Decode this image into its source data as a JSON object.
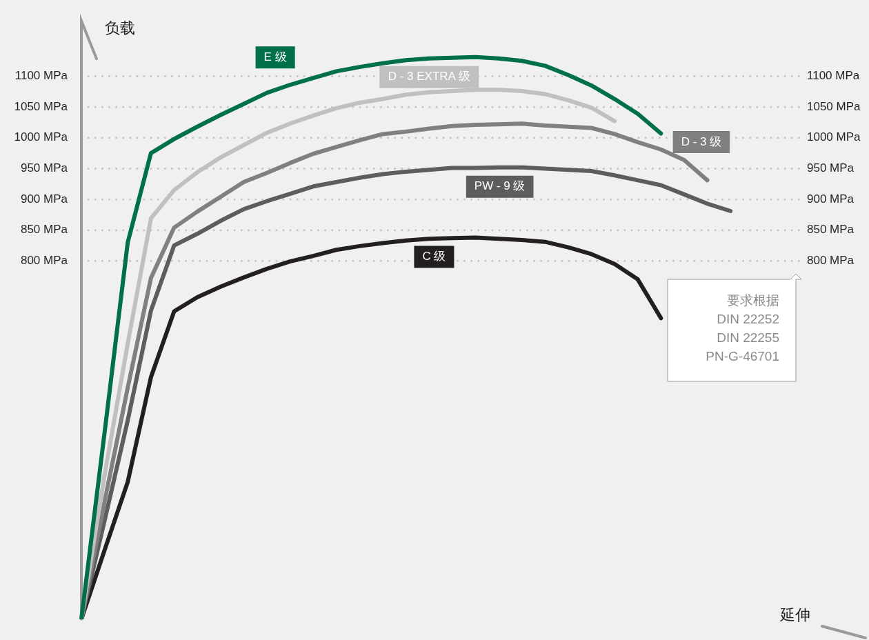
{
  "chart_data": {
    "type": "line",
    "xlabel": "延伸",
    "ylabel": "负载",
    "categories": [
      null,
      null,
      null,
      null,
      null,
      null,
      null,
      null,
      null,
      null,
      null,
      null,
      null,
      null,
      null,
      null,
      null,
      null,
      null,
      null,
      null,
      null,
      null,
      null,
      null,
      null,
      null,
      null,
      null,
      null,
      null,
      null
    ],
    "ylim": [
      218,
      1190
    ],
    "yticks": [
      {
        "value": 800,
        "label": "800 MPa"
      },
      {
        "value": 850,
        "label": "850 MPa"
      },
      {
        "value": 900,
        "label": "900 MPa"
      },
      {
        "value": 950,
        "label": "950 MPa"
      },
      {
        "value": 1000,
        "label": "1000 MPa"
      },
      {
        "value": 1050,
        "label": "1050 MPa"
      },
      {
        "value": 1100,
        "label": "1100 MPa"
      }
    ],
    "y2lim": [
      218,
      1190
    ],
    "y2ticks": [
      {
        "value": 800,
        "label": "800 MPa"
      },
      {
        "value": 850,
        "label": "850 MPa"
      },
      {
        "value": 900,
        "label": "900 MPa"
      },
      {
        "value": 950,
        "label": "950 MPa"
      },
      {
        "value": 1000,
        "label": "1000 MPa"
      },
      {
        "value": 1050,
        "label": "1050 MPa"
      },
      {
        "value": 1100,
        "label": "1100 MPa"
      }
    ],
    "tick_labels": "y",
    "grid": "y",
    "legend": false,
    "marker": "none",
    "line_style": "solid",
    "annotations": [
      "要求根据\nDIN 22252\nDIN 22255\nPN-G-46701"
    ],
    "series": [
      {
        "name": "E 级",
        "color": "#00704a",
        "values": [
          218,
          521,
          830,
          975,
          998,
          1018,
          1037,
          1055,
          1073,
          1086,
          1097,
          1108,
          1115,
          1121,
          1126,
          1129,
          1130,
          1131,
          1129,
          1125,
          1117,
          1102,
          1085,
          1063,
          1039,
          1007,
          null,
          null,
          null,
          null,
          null,
          null
        ]
      },
      {
        "name": "D - 3 EXTRA 级",
        "color": "#c0c0c2",
        "values": [
          218,
          452,
          666,
          869,
          915,
          944,
          968,
          988,
          1008,
          1023,
          1036,
          1048,
          1057,
          1063,
          1070,
          1074,
          1076,
          1078,
          1078,
          1076,
          1071,
          1061,
          1049,
          1027,
          null,
          null,
          null,
          null,
          null,
          null,
          null,
          null
        ]
      },
      {
        "name": "D - 3 级",
        "color": "#808083",
        "values": [
          218,
          409,
          594,
          772,
          854,
          880,
          904,
          928,
          943,
          959,
          974,
          985,
          996,
          1006,
          1010,
          1015,
          1019,
          1021,
          1022,
          1023,
          1020,
          1018,
          1016,
          1006,
          993,
          981,
          964,
          931,
          null,
          null,
          null,
          null
        ]
      },
      {
        "name": "PW - 9 级",
        "color": "#5d5d5f",
        "values": [
          218,
          378,
          541,
          719,
          825,
          844,
          865,
          884,
          897,
          909,
          921,
          928,
          935,
          941,
          945,
          948,
          951,
          951,
          952,
          952,
          950,
          948,
          946,
          939,
          931,
          923,
          908,
          893,
          881,
          null,
          null,
          null
        ]
      },
      {
        "name": "C 级",
        "color": "#231f20",
        "values": [
          218,
          330,
          441,
          611,
          718,
          741,
          758,
          773,
          787,
          799,
          808,
          818,
          824,
          829,
          833,
          836,
          837,
          838,
          836,
          834,
          831,
          822,
          811,
          795,
          770,
          707,
          null,
          null,
          null,
          null,
          null,
          null
        ]
      }
    ]
  }
}
